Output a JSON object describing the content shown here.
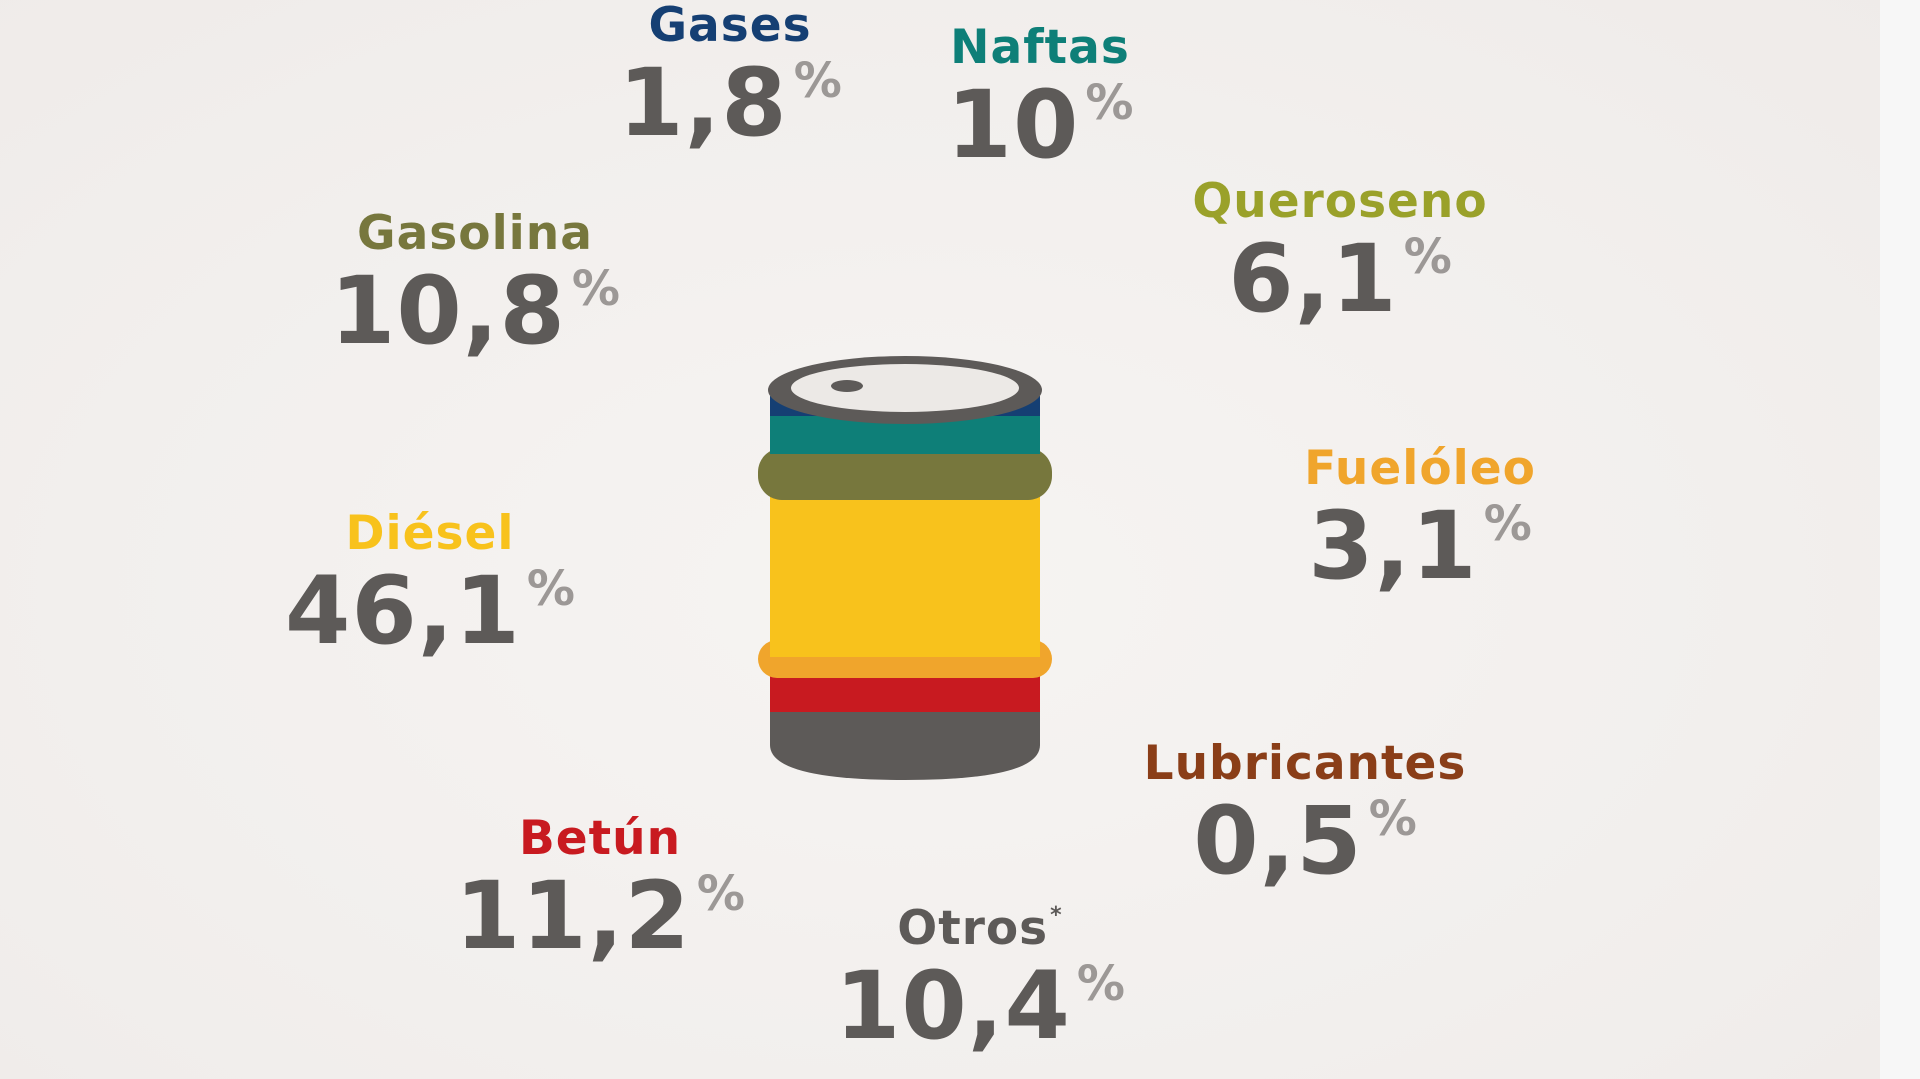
{
  "chart_data": {
    "type": "pie",
    "unit": "%",
    "categories": [
      "Gases",
      "Naftas",
      "Queroseno",
      "Gasolina",
      "Fuelóleo",
      "Diésel",
      "Lubricantes",
      "Betún",
      "Otros"
    ],
    "values": [
      1.8,
      10,
      6.1,
      10.8,
      3.1,
      46.1,
      0.5,
      11.2,
      10.4
    ],
    "labels": {
      "gases": "Gases",
      "naftas": "Naftas",
      "queroseno": "Queroseno",
      "gasolina": "Gasolina",
      "fueloleo": "Fuelóleo",
      "diesel": "Diésel",
      "lubricantes": "Lubricantes",
      "betun": "Betún",
      "otros": "Otros",
      "otros_note": "*"
    },
    "value_text": {
      "gases": "1,8",
      "naftas": "10",
      "queroseno": "6,1",
      "gasolina": "10,8",
      "fueloleo": "3,1",
      "diesel": "46,1",
      "lubricantes": "0,5",
      "betun": "11,2",
      "otros": "10,4"
    },
    "percent_sign": "%",
    "colors": {
      "gases": "#153f73",
      "naftas": "#0e7f78",
      "queroseno": "#9aa12a",
      "gasolina": "#77773d",
      "fueloleo": "#f0a52c",
      "diesel": "#f8c21c",
      "lubricantes": "#8a3e18",
      "betun": "#c81a20",
      "otros": "#5d5a58",
      "value_text": "#5d5a58",
      "percent_sign": "#9c9896"
    },
    "barrel_bands": [
      "otros",
      "betun",
      "diesel",
      "gasolina",
      "naftas",
      "gases"
    ]
  }
}
